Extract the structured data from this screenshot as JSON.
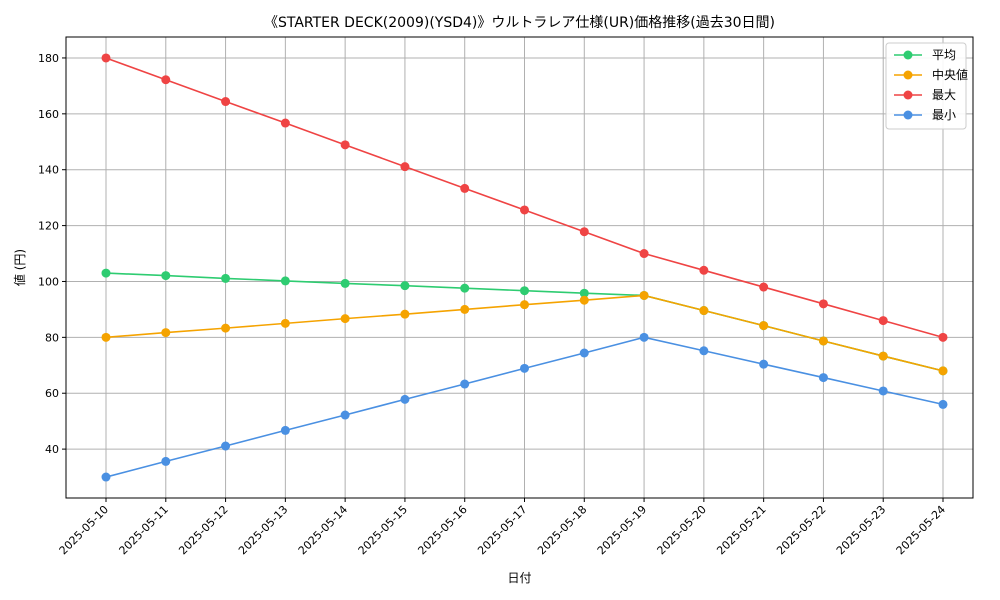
{
  "chart_data": {
    "type": "line",
    "title": "《STARTER DECK(2009)(YSD4)》ウルトラレア仕様(UR)価格推移(過去30日間)",
    "xlabel": "日付",
    "ylabel": "値 (円)",
    "ylim": [
      22.5,
      187.5
    ],
    "yticks": [
      40,
      60,
      80,
      100,
      120,
      140,
      160,
      180
    ],
    "grid": true,
    "legend_position": "top-right",
    "categories": [
      "2025-05-10",
      "2025-05-11",
      "2025-05-12",
      "2025-05-13",
      "2025-05-14",
      "2025-05-15",
      "2025-05-16",
      "2025-05-17",
      "2025-05-18",
      "2025-05-19",
      "2025-05-20",
      "2025-05-21",
      "2025-05-22",
      "2025-05-23",
      "2025-05-24"
    ],
    "series": [
      {
        "name": "平均",
        "color": "#2ecc71",
        "values": [
          103,
          102.1,
          101.1,
          100.2,
          99.3,
          98.5,
          97.6,
          96.7,
          95.8,
          95,
          89.6,
          84.2,
          78.7,
          73.3,
          68
        ]
      },
      {
        "name": "中央値",
        "color": "#f5a300",
        "values": [
          80,
          81.7,
          83.3,
          85,
          86.7,
          88.3,
          90,
          91.7,
          93.3,
          95,
          89.6,
          84.2,
          78.7,
          73.3,
          68
        ]
      },
      {
        "name": "最大",
        "color": "#ef4444",
        "values": [
          180,
          172.2,
          164.4,
          156.7,
          148.9,
          141.1,
          133.3,
          125.6,
          117.8,
          110,
          104,
          98,
          92,
          86,
          80
        ]
      },
      {
        "name": "最小",
        "color": "#4a90e2",
        "values": [
          30,
          35.6,
          41.1,
          46.7,
          52.2,
          57.8,
          63.3,
          68.9,
          74.4,
          80,
          75.2,
          70.4,
          65.6,
          60.8,
          56
        ]
      }
    ]
  }
}
